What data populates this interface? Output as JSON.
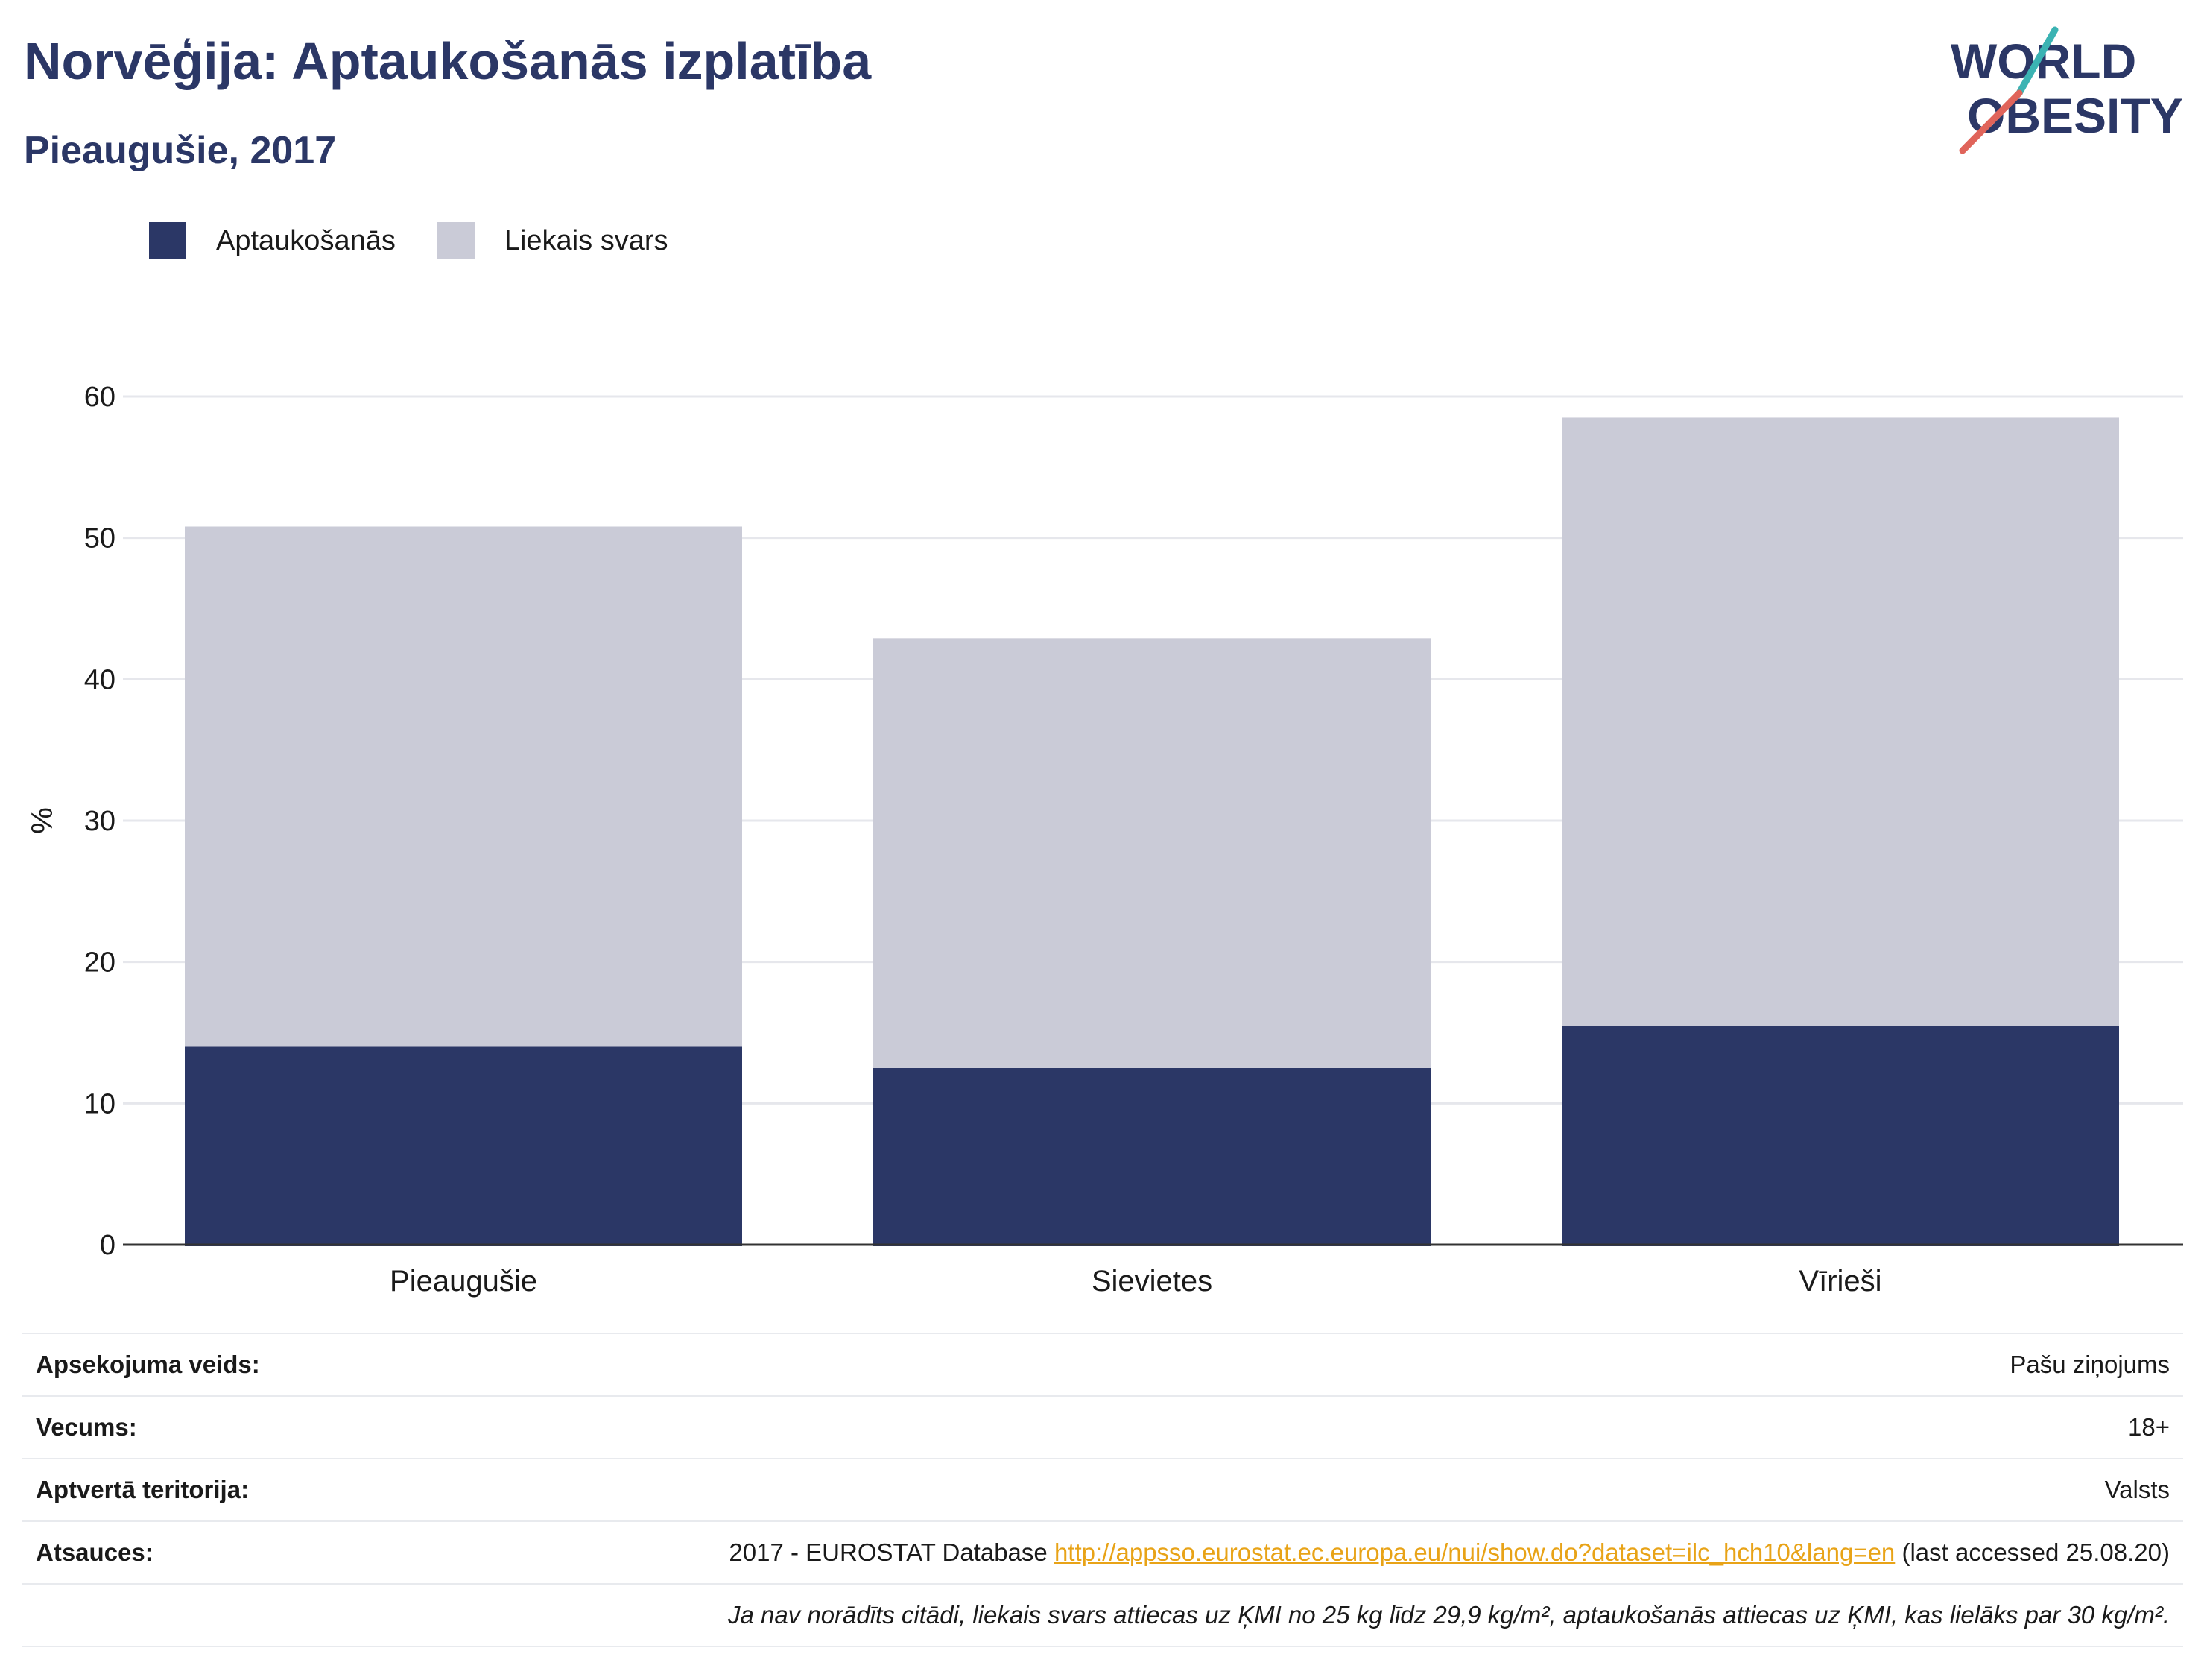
{
  "header": {
    "title": "Norvēģija: Aptaukošanās izplatība",
    "subtitle": "Pieaugušie, 2017",
    "logo_line1": "WORLD",
    "logo_line2": "OBESITY"
  },
  "colors": {
    "obesity": "#2b3766",
    "overweight": "#cacbd7",
    "accent": "#e8a317"
  },
  "chart_data": {
    "type": "bar",
    "stacked": true,
    "categories": [
      "Pieaugušie",
      "Sievietes",
      "Vīrieši"
    ],
    "series": [
      {
        "name": "Aptaukošanās",
        "values": [
          14.0,
          12.5,
          15.5
        ]
      },
      {
        "name": "Liekais svars",
        "values": [
          36.8,
          30.4,
          43.0
        ]
      }
    ],
    "ylabel": "%",
    "ylim": [
      0,
      60
    ],
    "yticks": [
      0,
      10,
      20,
      30,
      40,
      50,
      60
    ],
    "grid": true,
    "legend": "top-left"
  },
  "info": {
    "rows": [
      {
        "key": "Apsekojuma veids:",
        "value": "Pašu ziņojums"
      },
      {
        "key": "Vecums:",
        "value": "18+"
      },
      {
        "key": "Aptvertā teritorija:",
        "value": "Valsts"
      }
    ],
    "sources_key": "Atsauces:",
    "sources_prefix": "2017 - EUROSTAT Database ",
    "sources_link": "http://appsso.eurostat.ec.europa.eu/nui/show.do?dataset=ilc_hch10&lang=en",
    "sources_suffix": " (last accessed 25.08.20)",
    "note": "Ja nav norādīts citādi, liekais svars attiecas uz ĶMI no 25 kg līdz 29,9 kg/m², aptaukošanās attiecas uz ĶMI, kas lielāks par 30 kg/m²."
  }
}
